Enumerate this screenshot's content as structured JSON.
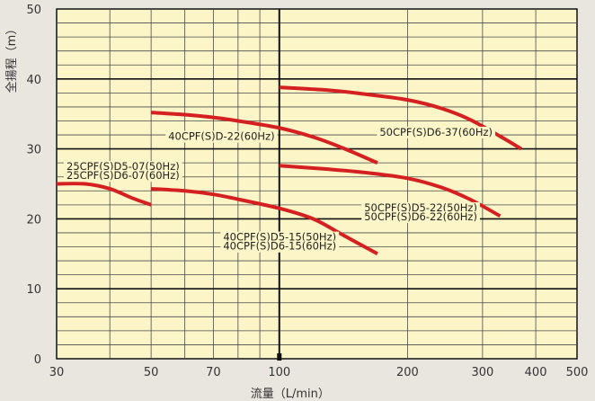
{
  "chart_data": {
    "type": "line",
    "xlabel": "流量（L/min）",
    "ylabel": "全揚程（m）",
    "xscale": "log",
    "xlim": [
      30,
      500
    ],
    "ylim": [
      0,
      50
    ],
    "x_ticks": [
      30,
      50,
      70,
      100,
      200,
      300,
      400,
      500
    ],
    "y_ticks": [
      0,
      10,
      20,
      30,
      40,
      50
    ],
    "grid": true,
    "colors": {
      "curve": "#d42020",
      "plot_bg": "#fbf5c8",
      "grid_minor": "#4a4a4a",
      "grid_major": "#111111",
      "page_bg": "#e9e6e0"
    },
    "series": [
      {
        "name": "25CPF(S)D5-07(50Hz) / 25CPF(S)D6-07(60Hz)",
        "points": [
          [
            30,
            25
          ],
          [
            35,
            25
          ],
          [
            40,
            24.3
          ],
          [
            45,
            23
          ],
          [
            50,
            22
          ]
        ]
      },
      {
        "name": "40CPF(S)D5-15(50Hz) / 40CPF(S)D6-15(60Hz)",
        "points": [
          [
            50,
            24.3
          ],
          [
            60,
            24
          ],
          [
            70,
            23.5
          ],
          [
            80,
            22.8
          ],
          [
            100,
            21.5
          ],
          [
            120,
            20
          ],
          [
            140,
            17.8
          ],
          [
            170,
            15
          ]
        ]
      },
      {
        "name": "40CPF(S)D-22(60Hz)",
        "points": [
          [
            50,
            35.2
          ],
          [
            60,
            34.9
          ],
          [
            70,
            34.5
          ],
          [
            80,
            34
          ],
          [
            100,
            33
          ],
          [
            120,
            31.7
          ],
          [
            140,
            30.2
          ],
          [
            170,
            28
          ]
        ]
      },
      {
        "name": "50CPF(S)D5-22(50Hz) / 50CPF(S)D6-22(60Hz)",
        "points": [
          [
            100,
            27.6
          ],
          [
            130,
            27.1
          ],
          [
            160,
            26.6
          ],
          [
            200,
            25.8
          ],
          [
            240,
            24.5
          ],
          [
            280,
            22.8
          ],
          [
            330,
            20.4
          ]
        ]
      },
      {
        "name": "50CPF(S)D6-37(60Hz)",
        "points": [
          [
            100,
            38.8
          ],
          [
            130,
            38.4
          ],
          [
            160,
            37.8
          ],
          [
            200,
            37
          ],
          [
            240,
            35.8
          ],
          [
            280,
            34.2
          ],
          [
            330,
            31.8
          ],
          [
            370,
            30
          ]
        ]
      }
    ],
    "annotations": [
      {
        "text": "25CPF(S)D5-07(50Hz)",
        "x": 30,
        "y": 27.5
      },
      {
        "text": "25CPF(S)D6-07(60Hz)",
        "x": 30,
        "y": 26.2
      },
      {
        "text": "40CPF(S)D-22(60Hz)",
        "x": 52,
        "y": 31.8
      },
      {
        "text": "50CPF(S)D6-37(60Hz)",
        "x": 163,
        "y": 32.4
      },
      {
        "text": "50CPF(S)D5-22(50Hz)",
        "x": 150,
        "y": 21.6
      },
      {
        "text": "50CPF(S)D6-22(60Hz)",
        "x": 150,
        "y": 20.3
      },
      {
        "text": "40CPF(S)D5-15(50Hz)",
        "x": 70,
        "y": 17.4
      },
      {
        "text": "40CPF(S)D6-15(60Hz)",
        "x": 70,
        "y": 16.1
      }
    ]
  }
}
